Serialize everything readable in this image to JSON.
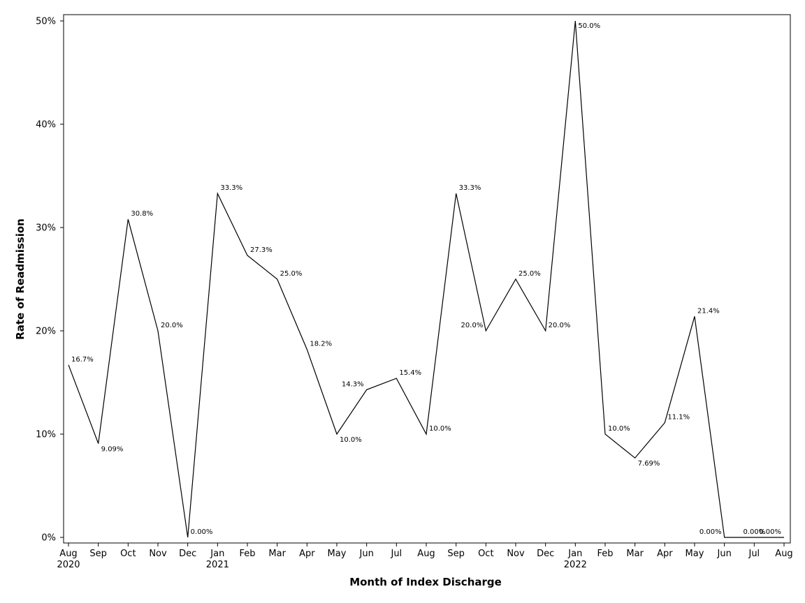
{
  "chart_data": {
    "type": "line",
    "xlabel": "Month of Index Discharge",
    "ylabel": "Rate of Readmission",
    "ylim": [
      0,
      50
    ],
    "y_ticks": [
      {
        "value": 0,
        "label": "0%"
      },
      {
        "value": 10,
        "label": "10%"
      },
      {
        "value": 20,
        "label": "20%"
      },
      {
        "value": 30,
        "label": "30%"
      },
      {
        "value": 40,
        "label": "40%"
      },
      {
        "value": 50,
        "label": "50%"
      }
    ],
    "grid": false,
    "series": [
      {
        "name": "Rate of Readmission",
        "color": "#000000",
        "points": [
          {
            "month": "Aug",
            "year": "2020",
            "value": 16.7,
            "label": "16.7%",
            "anchor": "ne"
          },
          {
            "month": "Sep",
            "year": "",
            "value": 9.09,
            "label": "9.09%",
            "anchor": "se"
          },
          {
            "month": "Oct",
            "year": "",
            "value": 30.8,
            "label": "30.8%",
            "anchor": "ne"
          },
          {
            "month": "Nov",
            "year": "",
            "value": 20.0,
            "label": "20.0%",
            "anchor": "ne"
          },
          {
            "month": "Dec",
            "year": "",
            "value": 0.0,
            "label": "0.00%",
            "anchor": "ne"
          },
          {
            "month": "Jan",
            "year": "2021",
            "value": 33.3,
            "label": "33.3%",
            "anchor": "ne"
          },
          {
            "month": "Feb",
            "year": "",
            "value": 27.3,
            "label": "27.3%",
            "anchor": "ne"
          },
          {
            "month": "Mar",
            "year": "",
            "value": 25.0,
            "label": "25.0%",
            "anchor": "ne"
          },
          {
            "month": "Apr",
            "year": "",
            "value": 18.2,
            "label": "18.2%",
            "anchor": "ne"
          },
          {
            "month": "May",
            "year": "",
            "value": 10.0,
            "label": "10.0%",
            "anchor": "se"
          },
          {
            "month": "Jun",
            "year": "",
            "value": 14.3,
            "label": "14.3%",
            "anchor": "nw"
          },
          {
            "month": "Jul",
            "year": "",
            "value": 15.4,
            "label": "15.4%",
            "anchor": "ne"
          },
          {
            "month": "Aug",
            "year": "",
            "value": 10.0,
            "label": "10.0%",
            "anchor": "ne"
          },
          {
            "month": "Sep",
            "year": "",
            "value": 33.3,
            "label": "33.3%",
            "anchor": "ne"
          },
          {
            "month": "Oct",
            "year": "",
            "value": 20.0,
            "label": "20.0%",
            "anchor": "nw"
          },
          {
            "month": "Nov",
            "year": "",
            "value": 25.0,
            "label": "25.0%",
            "anchor": "ne"
          },
          {
            "month": "Dec",
            "year": "",
            "value": 20.0,
            "label": "20.0%",
            "anchor": "ne"
          },
          {
            "month": "Jan",
            "year": "2022",
            "value": 50.0,
            "label": "50.0%",
            "anchor": "e"
          },
          {
            "month": "Feb",
            "year": "",
            "value": 10.0,
            "label": "10.0%",
            "anchor": "ne"
          },
          {
            "month": "Mar",
            "year": "",
            "value": 7.69,
            "label": "7.69%",
            "anchor": "se"
          },
          {
            "month": "Apr",
            "year": "",
            "value": 11.1,
            "label": "11.1%",
            "anchor": "ne"
          },
          {
            "month": "May",
            "year": "",
            "value": 21.4,
            "label": "21.4%",
            "anchor": "ne"
          },
          {
            "month": "Jun",
            "year": "",
            "value": 0.0,
            "label": "0.00%",
            "anchor": "nw"
          },
          {
            "month": "Jul",
            "year": "",
            "value": 0.0,
            "label": "0.00%",
            "anchor": "n"
          },
          {
            "month": "Aug",
            "year": "",
            "value": 0.0,
            "label": "0.00%",
            "anchor": "nw"
          }
        ]
      }
    ]
  }
}
